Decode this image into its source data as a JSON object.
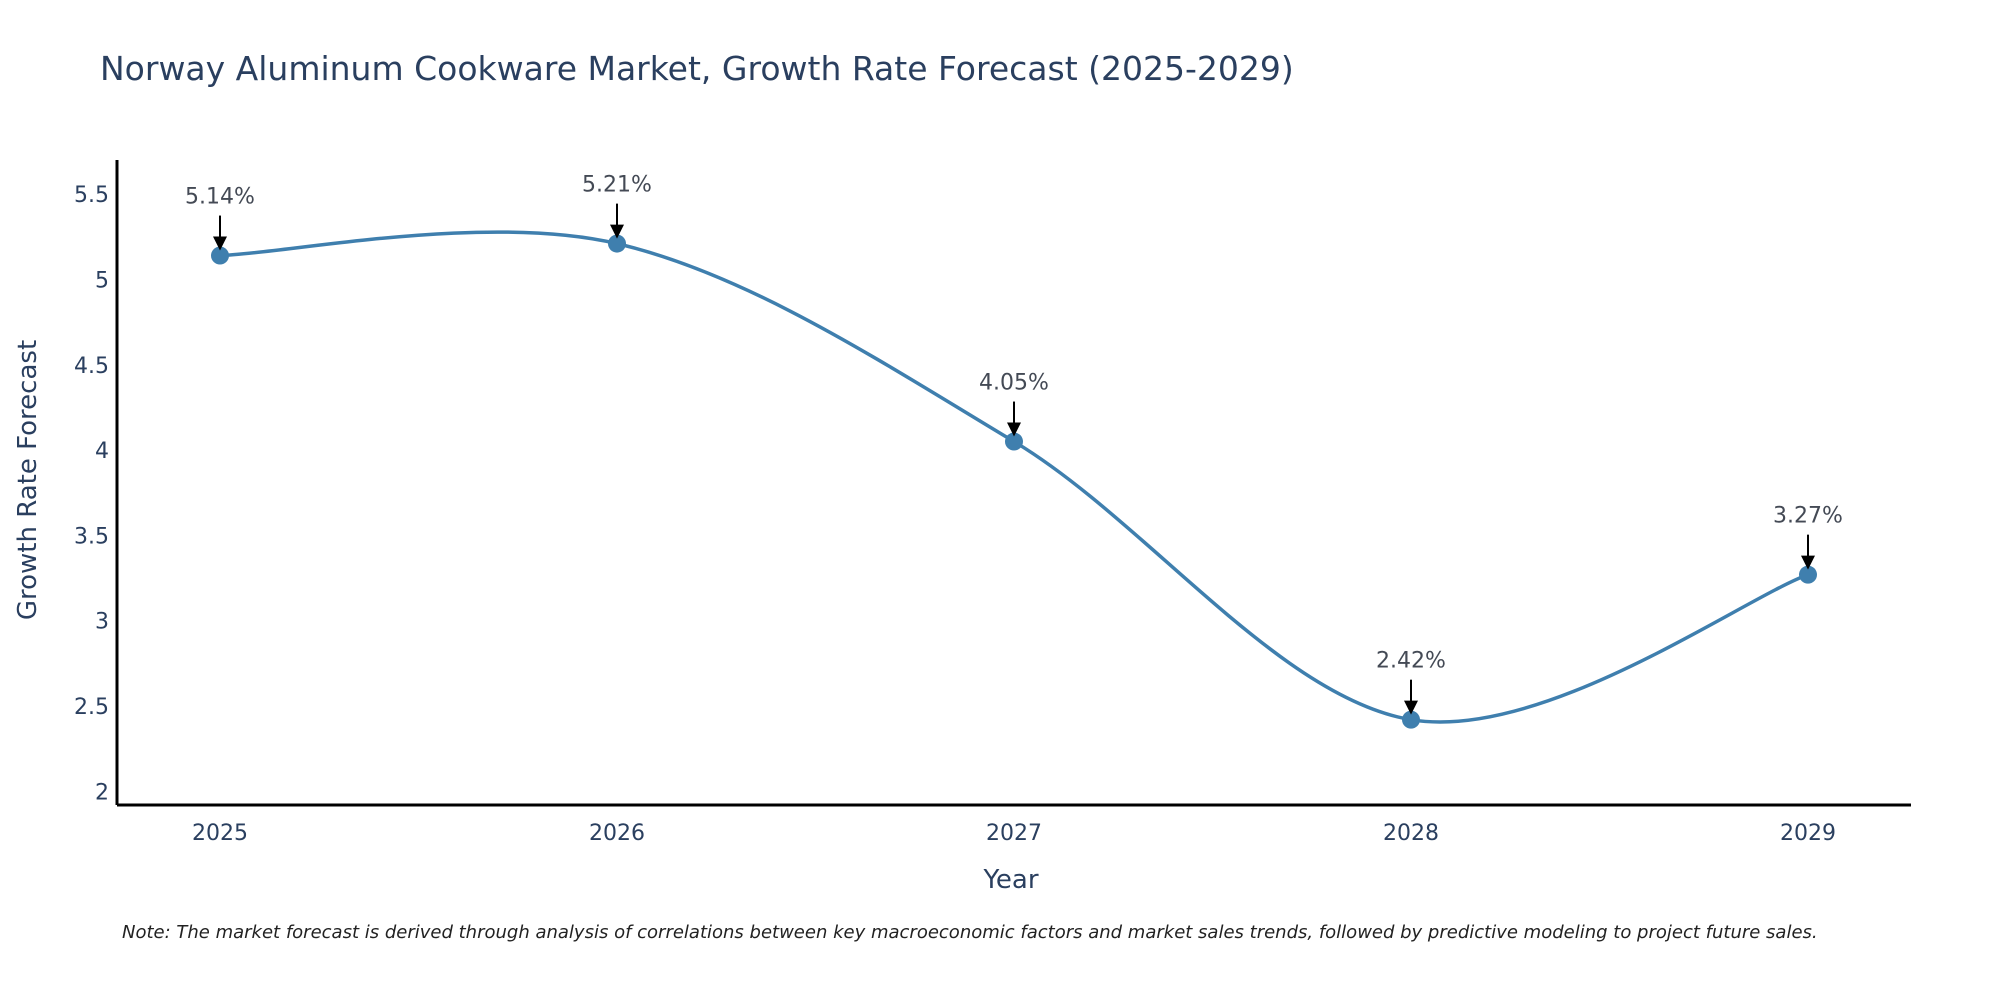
{
  "chart_data": {
    "type": "line",
    "title": "Norway Aluminum Cookware Market, Growth Rate Forecast (2025-2029)",
    "xlabel": "Year",
    "ylabel": "Growth Rate Forecast",
    "categories": [
      "2025",
      "2026",
      "2027",
      "2028",
      "2029"
    ],
    "values": [
      5.14,
      5.21,
      4.05,
      2.42,
      3.27
    ],
    "data_labels": [
      "5.14%",
      "5.21%",
      "4.05%",
      "2.42%",
      "3.27%"
    ],
    "ylim": [
      1.92,
      5.7
    ],
    "yticks": [
      2,
      2.5,
      3,
      3.5,
      4,
      4.5,
      5,
      5.5
    ],
    "ytick_labels": [
      "2",
      "2.5",
      "3",
      "3.5",
      "4",
      "4.5",
      "5",
      "5.5"
    ],
    "line_smoothing": "spline",
    "grid": false,
    "series_color": "#3f7fae",
    "arrow_color": "#000000",
    "axis_color": "#000000",
    "note": "Note: The market forecast is derived through analysis of correlations between key macroeconomic factors and market sales trends, followed by predictive modeling to project future sales."
  }
}
